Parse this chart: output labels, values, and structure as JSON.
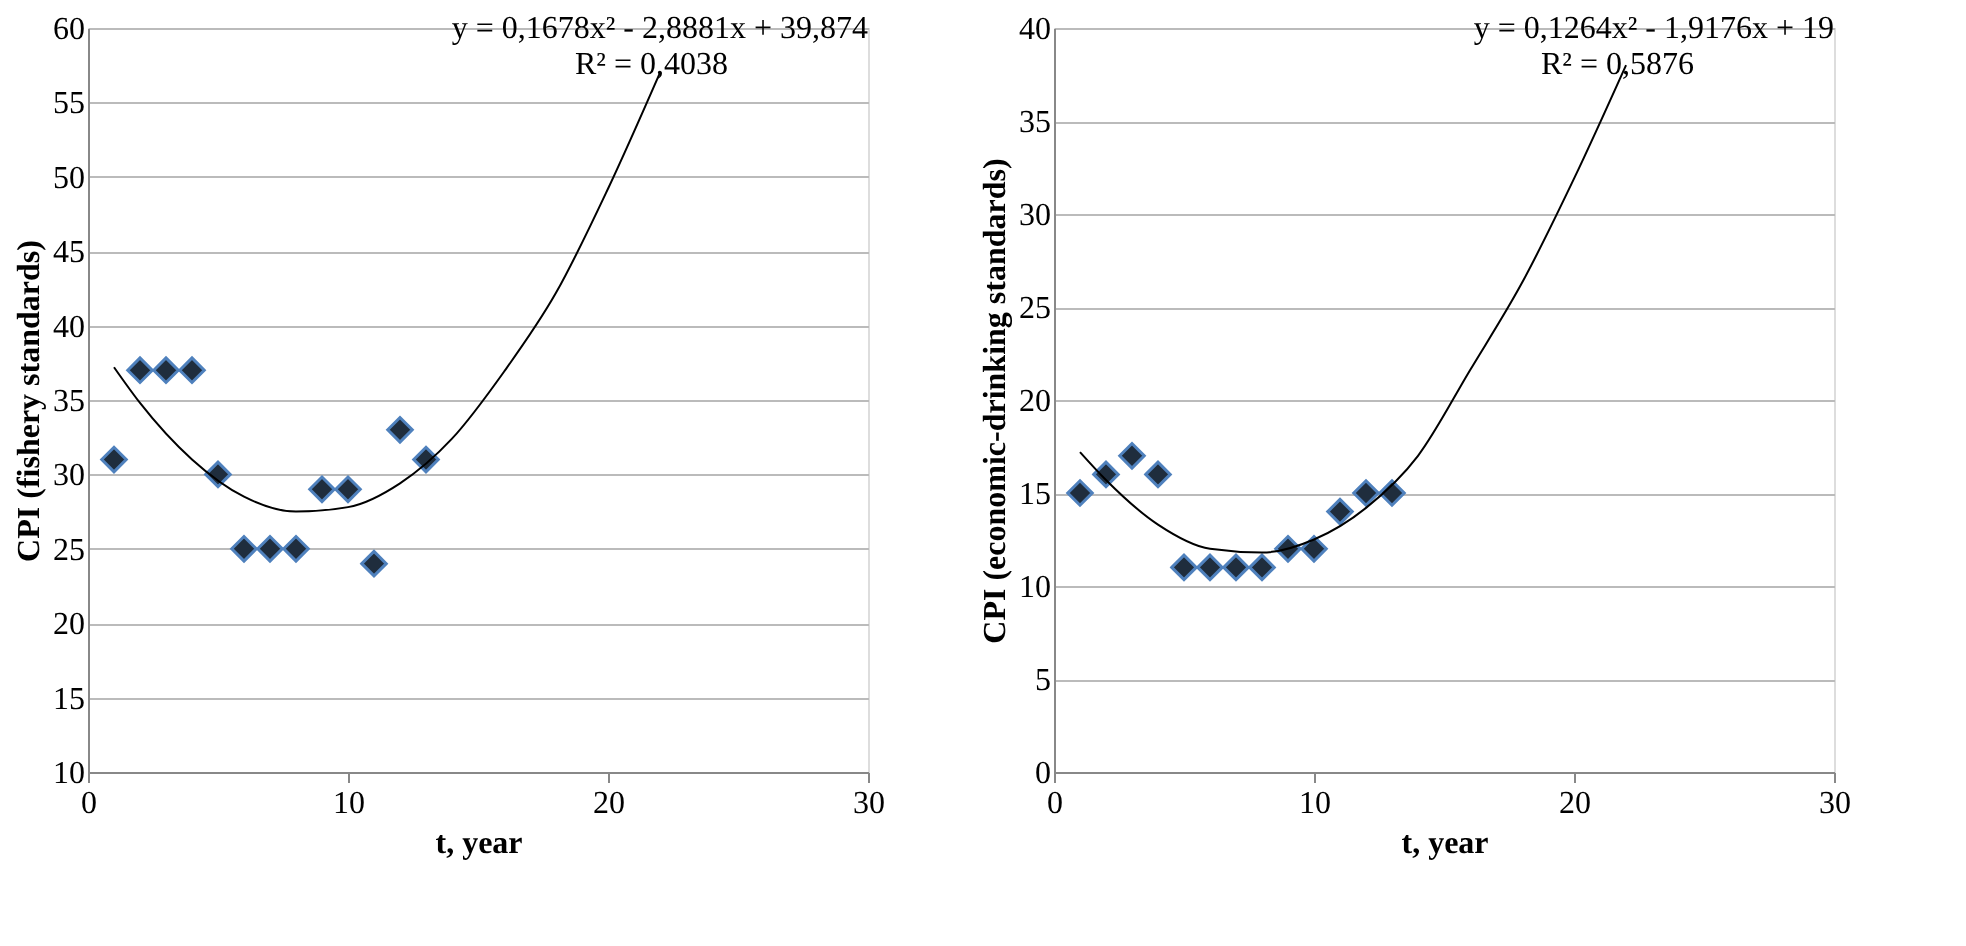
{
  "chart_data": [
    {
      "type": "scatter",
      "xlabel": "t, year",
      "ylabel": "CPI (fishery  standards)",
      "xlim": [
        0,
        30
      ],
      "xticks": [
        0,
        10,
        20,
        30
      ],
      "ylim": [
        10,
        60
      ],
      "yticks": [
        10,
        15,
        20,
        25,
        30,
        35,
        40,
        45,
        50,
        55,
        60
      ],
      "grid": "y",
      "marker": "diamond",
      "annotations": [
        "y = 0,1678x² - 2,8881x + 39,874",
        "R² = 0,4038"
      ],
      "series": [
        {
          "color": "#1f2d3d",
          "x": [
            1,
            2,
            3,
            4,
            5,
            6,
            7,
            8,
            9,
            10,
            11,
            12,
            13
          ],
          "values": [
            31,
            37,
            37,
            37,
            30,
            25,
            25,
            25,
            29,
            29,
            24,
            33,
            31
          ]
        },
        {
          "type": "line",
          "color": "#000000",
          "marker": "none",
          "x": [
            1,
            2,
            4,
            6,
            8,
            10,
            12,
            14,
            16,
            18,
            20,
            22
          ],
          "values": [
            37.2,
            34.8,
            31.0,
            28.5,
            27.5,
            27.8,
            29.4,
            32.4,
            36.9,
            42.2,
            49.2,
            57.0
          ]
        }
      ]
    },
    {
      "type": "scatter",
      "xlabel": "t, year",
      "ylabel": "CPI (economic-drinking  standards)",
      "xlim": [
        0,
        30
      ],
      "xticks": [
        0,
        10,
        20,
        30
      ],
      "ylim": [
        0,
        40
      ],
      "yticks": [
        0,
        5,
        10,
        15,
        20,
        25,
        30,
        35,
        40
      ],
      "grid": "y",
      "marker": "diamond",
      "annotations": [
        "y = 0,1264x² - 1,9176x + 19",
        "R² = 0,5876"
      ],
      "series": [
        {
          "color": "#1f2d3d",
          "x": [
            1,
            2,
            3,
            4,
            5,
            6,
            7,
            8,
            9,
            10,
            11,
            12,
            13
          ],
          "values": [
            15,
            16,
            17,
            16,
            11,
            11,
            11,
            11,
            12,
            12,
            14,
            15,
            15
          ]
        },
        {
          "type": "line",
          "color": "#000000",
          "marker": "none",
          "x": [
            1,
            2,
            4,
            6,
            8,
            10,
            12,
            14,
            16,
            18,
            20,
            22
          ],
          "values": [
            17.2,
            15.7,
            13.3,
            12.0,
            11.8,
            12.5,
            14.2,
            17.0,
            21.6,
            26.3,
            31.9,
            38.0
          ]
        }
      ]
    }
  ]
}
